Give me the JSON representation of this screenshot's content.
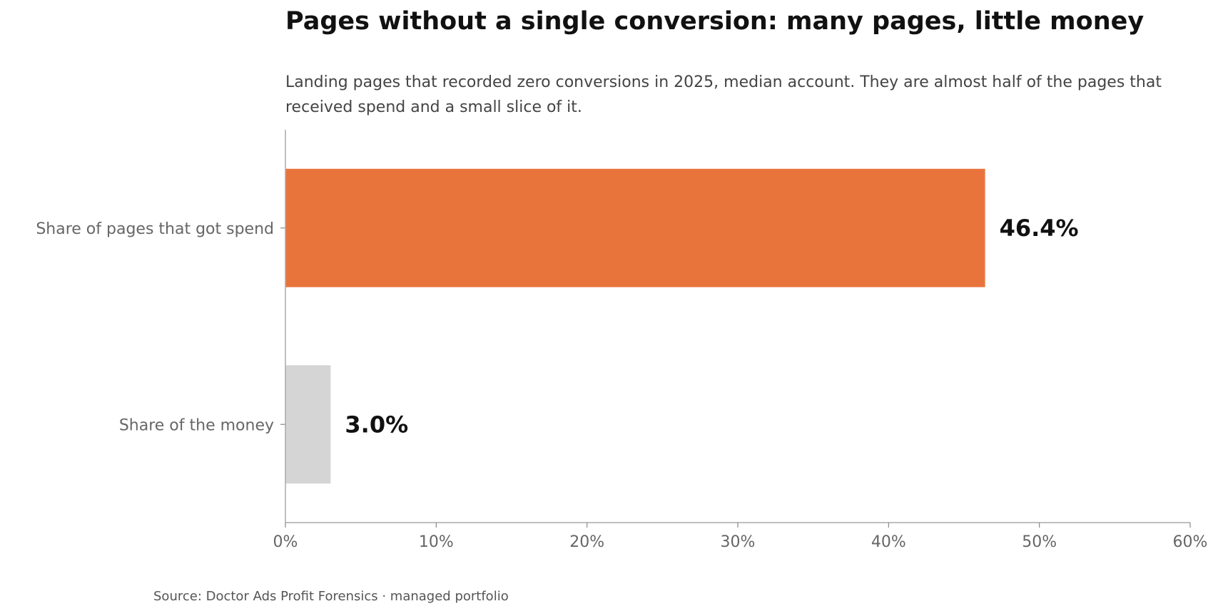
{
  "chart_data": {
    "type": "bar",
    "orientation": "horizontal",
    "title": "Pages without a single conversion: many pages, little money",
    "subtitle": "Landing pages that recorded zero conversions in 2025, median account. They are almost half of the pages that received spend and a small slice of it.",
    "categories": [
      "Share of pages that got spend",
      "Share of the money"
    ],
    "values": [
      46.4,
      3.0
    ],
    "value_labels": [
      "46.4%",
      "3.0%"
    ],
    "bar_colors": [
      "#E8743B",
      "#D5D5D5"
    ],
    "xlim": [
      0,
      60
    ],
    "xticks": [
      0,
      10,
      20,
      30,
      40,
      50,
      60
    ],
    "xtick_labels": [
      "0%",
      "10%",
      "20%",
      "30%",
      "40%",
      "50%",
      "60%"
    ],
    "xlabel": "",
    "ylabel": "",
    "grid": false,
    "legend": "none"
  },
  "source": "Source: Doctor Ads Profit Forensics · managed portfolio"
}
